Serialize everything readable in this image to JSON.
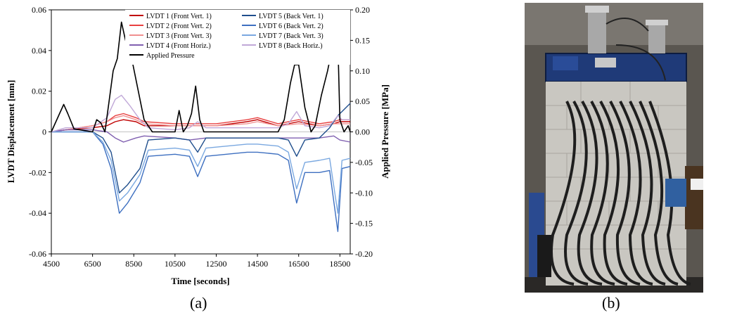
{
  "chart_data": {
    "type": "line",
    "xlabel": "Time [seconds]",
    "ylabel_left": "LVDT Displacement [mm]",
    "ylabel_right": "Applied Pressure [MPa]",
    "xlim": [
      4500,
      19000
    ],
    "ylim_left": [
      -0.06,
      0.06
    ],
    "ylim_right": [
      -0.2,
      0.2
    ],
    "x_ticks": [
      "4500",
      "6500",
      "8500",
      "10500",
      "12500",
      "14500",
      "16500",
      "18500"
    ],
    "y_left_ticks": [
      "-0.06",
      "-0.04",
      "-0.02",
      "0",
      "0.02",
      "0.04",
      "0.06"
    ],
    "y_right_ticks": [
      "-0.20",
      "-0.15",
      "-0.10",
      "-0.05",
      "0.00",
      "0.05",
      "0.10",
      "0.15",
      "0.20"
    ],
    "grid": false,
    "legend_position": "top-right",
    "series": [
      {
        "name": "LVDT 1 (Front Vert. 1)",
        "color": "#c00000",
        "axis": "left",
        "x": [
          4500,
          5200,
          6500,
          7200,
          7600,
          8000,
          8600,
          9000,
          10500,
          11200,
          12000,
          12500,
          14000,
          14500,
          15500,
          16500,
          17500,
          18200,
          18500,
          19000
        ],
        "y": [
          0,
          0.001,
          0.002,
          0.003,
          0.005,
          0.006,
          0.005,
          0.003,
          0.003,
          0.003,
          0.003,
          0.003,
          0.005,
          0.006,
          0.003,
          0.005,
          0.003,
          0.004,
          0.005,
          0.005
        ]
      },
      {
        "name": "LVDT 2 (Front Vert. 2)",
        "color": "#e84040",
        "axis": "left",
        "x": [
          4500,
          5200,
          6500,
          7200,
          7600,
          8000,
          8600,
          9000,
          10500,
          11200,
          12000,
          12500,
          14000,
          14500,
          15500,
          16500,
          17500,
          18200,
          18500,
          19000
        ],
        "y": [
          0,
          0.001,
          0.003,
          0.005,
          0.008,
          0.009,
          0.007,
          0.005,
          0.004,
          0.004,
          0.004,
          0.004,
          0.006,
          0.007,
          0.004,
          0.006,
          0.004,
          0.005,
          0.006,
          0.006
        ]
      },
      {
        "name": "LVDT 3 (Front Vert. 3)",
        "color": "#f09090",
        "axis": "left",
        "x": [
          4500,
          5200,
          6500,
          7200,
          7600,
          8000,
          8600,
          9000,
          10500,
          11200,
          12000,
          12500,
          14000,
          14500,
          15500,
          16500,
          17500,
          18200,
          18500,
          19000
        ],
        "y": [
          0,
          0.001,
          0.003,
          0.005,
          0.007,
          0.008,
          0.006,
          0.004,
          0.003,
          0.003,
          0.003,
          0.003,
          0.004,
          0.005,
          0.003,
          0.004,
          0.003,
          0.004,
          0.004,
          0.004
        ]
      },
      {
        "name": "LVDT 4 (Front Horiz.)",
        "color": "#8060b0",
        "axis": "left",
        "x": [
          4500,
          5200,
          6500,
          7200,
          7600,
          8000,
          8600,
          9000,
          10500,
          11200,
          12000,
          12500,
          14000,
          14500,
          15500,
          16500,
          17500,
          18200,
          18500,
          19000
        ],
        "y": [
          0,
          0.001,
          0.001,
          0.0,
          -0.003,
          -0.005,
          -0.003,
          -0.002,
          -0.003,
          -0.004,
          -0.003,
          -0.003,
          -0.003,
          -0.003,
          -0.003,
          -0.003,
          -0.003,
          -0.002,
          -0.004,
          -0.005
        ]
      },
      {
        "name": "LVDT 5 (Back Vert. 1)",
        "color": "#1f4e8c",
        "axis": "left",
        "x": [
          4500,
          6500,
          7000,
          7400,
          7800,
          8200,
          8800,
          9200,
          10500,
          11200,
          11600,
          12000,
          14000,
          14500,
          15500,
          16000,
          16400,
          16800,
          17500,
          18000,
          18400,
          18600,
          19000
        ],
        "y": [
          0,
          0,
          -0.003,
          -0.01,
          -0.03,
          -0.026,
          -0.018,
          -0.004,
          -0.003,
          -0.004,
          -0.01,
          -0.003,
          -0.003,
          -0.003,
          -0.003,
          -0.004,
          -0.012,
          -0.004,
          -0.003,
          0.002,
          0.008,
          0.01,
          0.014
        ]
      },
      {
        "name": "LVDT 6 (Back Vert. 2)",
        "color": "#3d6fc0",
        "axis": "left",
        "x": [
          4500,
          6500,
          7000,
          7400,
          7800,
          8200,
          8800,
          9200,
          10500,
          11200,
          11600,
          12000,
          14000,
          14500,
          15500,
          16000,
          16400,
          16800,
          17500,
          18000,
          18400,
          18600,
          19000
        ],
        "y": [
          0,
          0,
          -0.006,
          -0.018,
          -0.04,
          -0.035,
          -0.025,
          -0.012,
          -0.011,
          -0.012,
          -0.022,
          -0.012,
          -0.01,
          -0.01,
          -0.011,
          -0.014,
          -0.035,
          -0.02,
          -0.02,
          -0.019,
          -0.049,
          -0.018,
          -0.017
        ]
      },
      {
        "name": "LVDT 7 (Back Vert. 3)",
        "color": "#7aa8e0",
        "axis": "left",
        "x": [
          4500,
          6500,
          7000,
          7400,
          7800,
          8200,
          8800,
          9200,
          10500,
          11200,
          11600,
          12000,
          14000,
          14500,
          15500,
          16000,
          16400,
          16800,
          17500,
          18000,
          18400,
          18600,
          19000
        ],
        "y": [
          0,
          0,
          -0.005,
          -0.014,
          -0.034,
          -0.03,
          -0.021,
          -0.009,
          -0.008,
          -0.009,
          -0.017,
          -0.008,
          -0.006,
          -0.006,
          -0.007,
          -0.01,
          -0.028,
          -0.015,
          -0.014,
          -0.013,
          -0.04,
          -0.014,
          -0.013
        ]
      },
      {
        "name": "LVDT 8 (Back Horiz.)",
        "color": "#c0a8d8",
        "axis": "left",
        "x": [
          4500,
          5200,
          6500,
          7200,
          7600,
          7900,
          8300,
          8800,
          9200,
          10500,
          11200,
          11600,
          12000,
          14500,
          15500,
          16000,
          16400,
          16800,
          17500,
          18000,
          18400,
          18600,
          19000
        ],
        "y": [
          0,
          0.002,
          0.002,
          0.007,
          0.016,
          0.018,
          0.013,
          0.006,
          0.002,
          0.001,
          0.002,
          0.005,
          0.002,
          0.002,
          0.002,
          0.004,
          0.01,
          0.003,
          0.002,
          0.003,
          0.008,
          0.006,
          0.006
        ]
      },
      {
        "name": "Applied Pressure",
        "color": "#000000",
        "axis": "right",
        "x": [
          4500,
          4900,
          5100,
          5300,
          5600,
          6500,
          6700,
          6900,
          7100,
          7300,
          7500,
          7700,
          7900,
          8100,
          8400,
          8700,
          9000,
          9400,
          10500,
          10700,
          10900,
          11100,
          11300,
          11500,
          11700,
          11900,
          12200,
          15500,
          15800,
          16100,
          16300,
          16500,
          16800,
          17100,
          17300,
          17600,
          17900,
          18200,
          18400,
          18500,
          18700,
          18900,
          19000
        ],
        "y": [
          0,
          0.03,
          0.045,
          0.03,
          0.005,
          0.0,
          0.02,
          0.015,
          0.0,
          0.05,
          0.1,
          0.12,
          0.18,
          0.15,
          0.12,
          0.07,
          0.02,
          0.0,
          0.0,
          0.035,
          0.0,
          0.01,
          0.03,
          0.075,
          0.02,
          0.0,
          0.0,
          0.0,
          0.02,
          0.08,
          0.11,
          0.11,
          0.04,
          0.0,
          0.01,
          0.06,
          0.1,
          0.15,
          0.15,
          0.02,
          0.0,
          0.01,
          0.0
        ]
      }
    ]
  },
  "captions": {
    "a": "(a)",
    "b": "(b)"
  },
  "photo": {
    "description_icon": "wall-test-rig-photo"
  }
}
